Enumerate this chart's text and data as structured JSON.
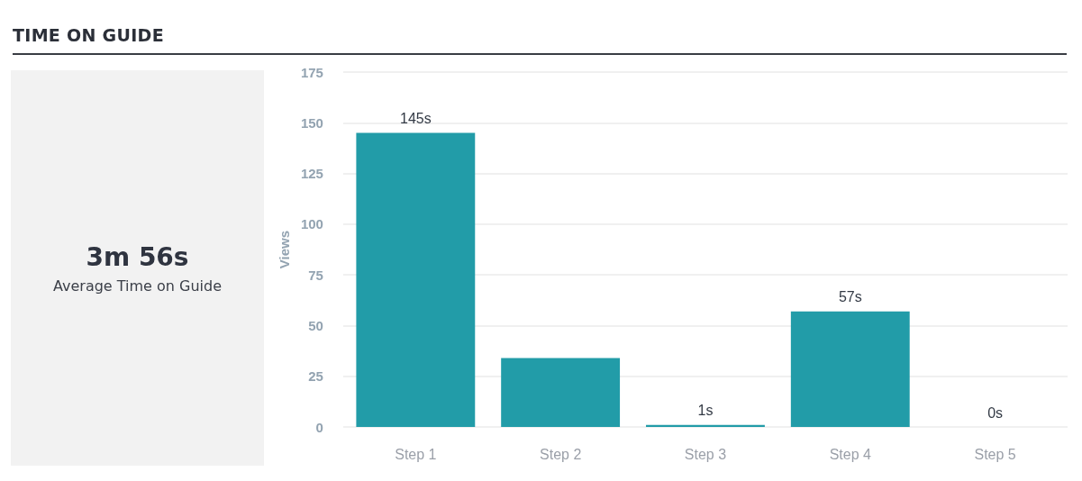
{
  "chart_data": [
    {
      "type": "other",
      "title": "TIME ON GUIDE",
      "annotations": [
        "3m 56s",
        "Average Time on Guide"
      ]
    },
    {
      "type": "bar",
      "ylabel": "Views",
      "categories": [
        "Step 1",
        "Step 2",
        "Step 3",
        "Step 4",
        "Step 5"
      ],
      "values": [
        145,
        34,
        1,
        57,
        0
      ],
      "value_labels": [
        "145s",
        null,
        "1s",
        "57s",
        "0s"
      ],
      "color": "#229ca8",
      "ylim": [
        0,
        175
      ],
      "yticks": [
        0,
        25,
        50,
        75,
        100,
        125,
        150,
        175
      ],
      "grid": "y"
    }
  ]
}
